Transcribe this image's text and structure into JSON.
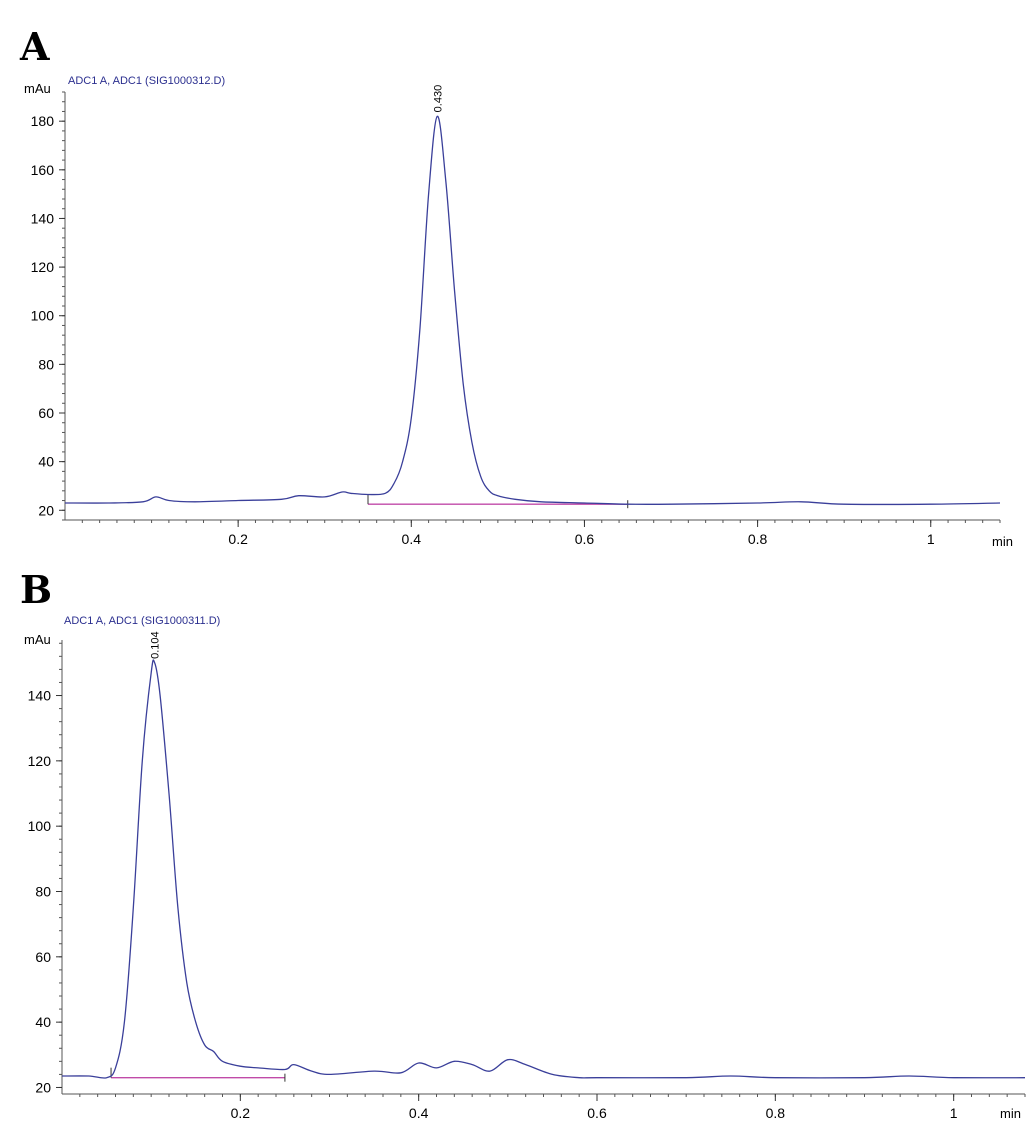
{
  "chart_data": [
    {
      "type": "line",
      "panel": "A",
      "title": "ADC1 A, ADC1 (SIG1000312.D)",
      "ylabel": "mAu",
      "xlabel": "min",
      "xlim": [
        0.0,
        1.08
      ],
      "ylim": [
        16,
        192
      ],
      "xticks": [
        {
          "value": 0.2,
          "label": "0.2"
        },
        {
          "value": 0.4,
          "label": "0.4"
        },
        {
          "value": 0.6,
          "label": "0.6"
        },
        {
          "value": 0.8,
          "label": "0.8"
        },
        {
          "value": 1.0,
          "label": "1"
        }
      ],
      "yticks": [
        {
          "value": 20,
          "label": "20"
        },
        {
          "value": 40,
          "label": "40"
        },
        {
          "value": 60,
          "label": "60"
        },
        {
          "value": 80,
          "label": "80"
        },
        {
          "value": 100,
          "label": "100"
        },
        {
          "value": 120,
          "label": "120"
        },
        {
          "value": 140,
          "label": "140"
        },
        {
          "value": 160,
          "label": "160"
        },
        {
          "value": 180,
          "label": "180"
        }
      ],
      "peak": {
        "x": 0.43,
        "y": 182,
        "label": "0.430"
      },
      "baseline": {
        "x1": 0.35,
        "y1": 22.5,
        "x2": 0.65,
        "y2": 22.5
      },
      "series": [
        {
          "color": "#3a3f9a",
          "x": [
            0.0,
            0.05,
            0.09,
            0.105,
            0.12,
            0.15,
            0.2,
            0.25,
            0.27,
            0.3,
            0.32,
            0.33,
            0.35,
            0.37,
            0.38,
            0.39,
            0.4,
            0.41,
            0.42,
            0.43,
            0.44,
            0.45,
            0.46,
            0.47,
            0.48,
            0.49,
            0.5,
            0.52,
            0.55,
            0.6,
            0.65,
            0.7,
            0.8,
            0.85,
            0.9,
            1.0,
            1.08
          ],
          "y": [
            23,
            23,
            23.5,
            25.5,
            24,
            23.5,
            24,
            24.5,
            26,
            25.5,
            27.5,
            27,
            26.5,
            27,
            31,
            40,
            58,
            95,
            150,
            182,
            155,
            110,
            72,
            48,
            34,
            28,
            26,
            24.5,
            23.5,
            23,
            22.5,
            22.5,
            23,
            23.5,
            22.5,
            22.5,
            23
          ]
        }
      ]
    },
    {
      "type": "line",
      "panel": "B",
      "title": "ADC1 A, ADC1 (SIG1000311.D)",
      "ylabel": "mAu",
      "xlabel": "min",
      "xlim": [
        0.0,
        1.08
      ],
      "ylim": [
        18,
        157
      ],
      "xticks": [
        {
          "value": 0.2,
          "label": "0.2"
        },
        {
          "value": 0.4,
          "label": "0.4"
        },
        {
          "value": 0.6,
          "label": "0.6"
        },
        {
          "value": 0.8,
          "label": "0.8"
        },
        {
          "value": 1.0,
          "label": "1"
        }
      ],
      "yticks": [
        {
          "value": 20,
          "label": "20"
        },
        {
          "value": 40,
          "label": "40"
        },
        {
          "value": 60,
          "label": "60"
        },
        {
          "value": 80,
          "label": "80"
        },
        {
          "value": 100,
          "label": "100"
        },
        {
          "value": 120,
          "label": "120"
        },
        {
          "value": 140,
          "label": "140"
        }
      ],
      "peak": {
        "x": 0.104,
        "y": 150,
        "label": "0.104"
      },
      "baseline": {
        "x1": 0.055,
        "y1": 23,
        "x2": 0.25,
        "y2": 23
      },
      "series": [
        {
          "color": "#3a3f9a",
          "x": [
            0.0,
            0.03,
            0.05,
            0.06,
            0.07,
            0.08,
            0.09,
            0.1,
            0.104,
            0.11,
            0.12,
            0.13,
            0.14,
            0.15,
            0.16,
            0.17,
            0.18,
            0.2,
            0.22,
            0.25,
            0.26,
            0.28,
            0.3,
            0.35,
            0.38,
            0.4,
            0.42,
            0.44,
            0.46,
            0.48,
            0.5,
            0.52,
            0.55,
            0.58,
            0.6,
            0.7,
            0.75,
            0.8,
            0.9,
            0.95,
            1.0,
            1.08
          ],
          "y": [
            23.5,
            23.5,
            23,
            26,
            40,
            75,
            120,
            147,
            150,
            140,
            110,
            75,
            52,
            40,
            33,
            31,
            28,
            26.5,
            26,
            25.5,
            27,
            25,
            24,
            25,
            24.5,
            27.5,
            26,
            28,
            27,
            25,
            28.5,
            27,
            24,
            23,
            23,
            23,
            23.5,
            23,
            23,
            23.5,
            23,
            23
          ]
        }
      ]
    }
  ]
}
